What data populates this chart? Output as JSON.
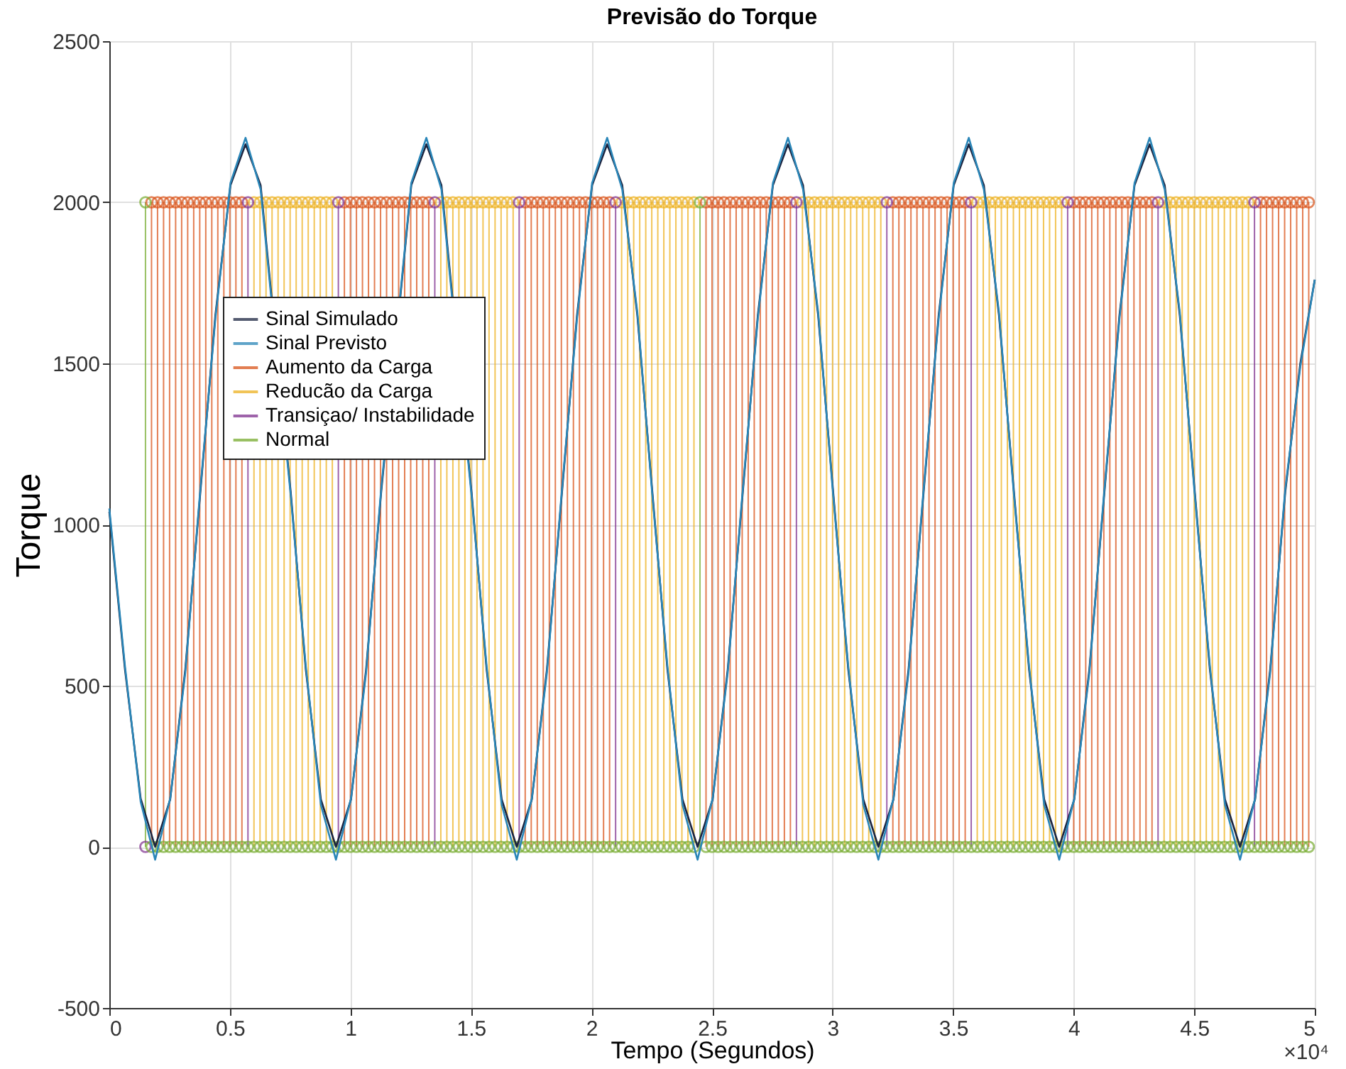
{
  "chart_data": {
    "type": "line",
    "title": "Previsão do Torque",
    "xlabel": "Tempo (Segundos)",
    "ylabel": "Torque",
    "xlim": [
      0,
      5
    ],
    "xticks": [
      0,
      0.5,
      1,
      1.5,
      2,
      2.5,
      3,
      3.5,
      4,
      4.5,
      5
    ],
    "ylim": [
      -500,
      2500
    ],
    "yticks": [
      -500,
      0,
      500,
      1000,
      1500,
      2000,
      2500
    ],
    "grid": true,
    "legend": "left",
    "annotations": [
      "×10⁴"
    ],
    "series": [
      {
        "name": "Sinal Simulado",
        "color": "#1c2541",
        "x": [
          0,
          0.065,
          0.13,
          0.19,
          0.2525,
          0.315,
          0.3775,
          0.44,
          0.5025,
          0.565,
          0.6275,
          0.69,
          0.7525,
          0.815,
          0.8775,
          0.94,
          1.0025,
          1.065,
          1.1275,
          1.19,
          1.2525,
          1.315,
          1.3775,
          1.44,
          1.5025,
          1.565,
          1.6275,
          1.69,
          1.7525,
          1.815,
          1.8775,
          1.94,
          2.0025,
          2.065,
          2.1275,
          2.19,
          2.2525,
          2.315,
          2.3775,
          2.44,
          2.5025,
          2.565,
          2.6275,
          2.69,
          2.7525,
          2.815,
          2.8775,
          2.94,
          3.0025,
          3.065,
          3.1275,
          3.19,
          3.2525,
          3.315,
          3.3775,
          3.44,
          3.5025,
          3.565,
          3.6275,
          3.69,
          3.7525,
          3.815,
          3.8775,
          3.94,
          4.0025,
          4.065,
          4.1275,
          4.19,
          4.2525,
          4.315,
          4.3775,
          4.44,
          4.5025,
          4.565,
          4.6275,
          4.69,
          4.7525,
          4.815,
          4.8775,
          4.94,
          5
        ],
        "values": [
          1040,
          550,
          150,
          0,
          147,
          550,
          1100,
          1650,
          2053,
          2180,
          2053,
          null,
          1100,
          550,
          147,
          0,
          147,
          550,
          1100,
          null,
          2053,
          2180,
          2053,
          null,
          1100,
          550,
          147,
          0,
          147,
          550,
          1100,
          1650,
          2053,
          2180,
          2053,
          1650,
          1100,
          550,
          147,
          0,
          147,
          550,
          1100,
          1650,
          2053,
          2180,
          2053,
          1650,
          1100,
          550,
          147,
          0,
          147,
          550,
          1100,
          1650,
          2053,
          2180,
          2053,
          1650,
          1100,
          550,
          147,
          0,
          147,
          550,
          1100,
          1650,
          2053,
          2180,
          2053,
          1650,
          1100,
          550,
          147,
          0,
          147,
          550,
          1100,
          1500,
          1760
        ]
      },
      {
        "name": "Sinal Previsto",
        "color": "#2a86b8",
        "x": [
          0,
          0.065,
          0.13,
          0.19,
          0.2525,
          0.315,
          0.3775,
          0.44,
          0.5025,
          0.565,
          0.6275,
          0.69,
          0.7525,
          0.815,
          0.8775,
          0.94,
          1.0025,
          1.065,
          1.1275,
          1.19,
          1.2525,
          1.315,
          1.3775,
          1.44,
          1.5025,
          1.565,
          1.6275,
          1.69,
          1.7525,
          1.815,
          1.8775,
          1.94,
          2.0025,
          2.065,
          2.1275,
          2.19,
          2.2525,
          2.315,
          2.3775,
          2.44,
          2.5025,
          2.565,
          2.6275,
          2.69,
          2.7525,
          2.815,
          2.8775,
          2.94,
          3.0025,
          3.065,
          3.1275,
          3.19,
          3.2525,
          3.315,
          3.3775,
          3.44,
          3.5025,
          3.565,
          3.6275,
          3.69,
          3.7525,
          3.815,
          3.8775,
          3.94,
          4.0025,
          4.065,
          4.1275,
          4.19,
          4.2525,
          4.315,
          4.3775,
          4.44,
          4.5025,
          4.565,
          4.6275,
          4.69,
          4.7525,
          4.815,
          4.8775,
          4.94,
          5
        ],
        "values": [
          1050,
          560,
          140,
          -40,
          150,
          540,
          1110,
          1640,
          2060,
          2200,
          2040,
          null,
          1090,
          560,
          130,
          -40,
          150,
          540,
          1110,
          null,
          2060,
          2200,
          2040,
          null,
          1090,
          560,
          130,
          -40,
          150,
          540,
          1110,
          1640,
          2060,
          2200,
          2040,
          1660,
          1090,
          560,
          130,
          -40,
          150,
          540,
          1110,
          1640,
          2060,
          2200,
          2040,
          1660,
          1090,
          560,
          130,
          -40,
          150,
          540,
          1110,
          1640,
          2060,
          2200,
          2040,
          1660,
          1090,
          560,
          130,
          -40,
          150,
          540,
          1110,
          1640,
          2060,
          2200,
          2040,
          1660,
          1090,
          560,
          130,
          -40,
          150,
          540,
          1110,
          1490,
          1760
        ]
      },
      {
        "name": "Aumento da Carga",
        "color": "#d95319",
        "type": "lollipop",
        "marker": "circle",
        "x": [
          0.175,
          0.2,
          0.225,
          0.25,
          0.275,
          0.3,
          0.325,
          0.35,
          0.375,
          0.4,
          0.425,
          0.45,
          0.475,
          0.5,
          0.525,
          0.55,
          0.975,
          1,
          1.025,
          1.05,
          1.075,
          1.1,
          1.125,
          1.15,
          1.175,
          1.2,
          1.225,
          1.25,
          1.275,
          1.3,
          1.325,
          1.725,
          1.75,
          1.775,
          1.8,
          1.825,
          1.85,
          1.875,
          1.9,
          1.925,
          1.95,
          1.975,
          2,
          2.025,
          2.05,
          2.075,
          2.475,
          2.5,
          2.525,
          2.55,
          2.575,
          2.6,
          2.625,
          2.65,
          2.675,
          2.7,
          2.725,
          2.75,
          2.775,
          2.8,
          2.825,
          3.25,
          3.275,
          3.3,
          3.325,
          3.35,
          3.375,
          3.4,
          3.425,
          3.45,
          3.475,
          3.5,
          3.525,
          3.55,
          4,
          4.025,
          4.05,
          4.075,
          4.1,
          4.125,
          4.15,
          4.175,
          4.2,
          4.225,
          4.25,
          4.275,
          4.3,
          4.325,
          4.775,
          4.8,
          4.825,
          4.85,
          4.875,
          4.9,
          4.925,
          4.95,
          4.975
        ],
        "values": [
          2000,
          2000,
          2000,
          2000,
          2000,
          2000,
          2000,
          2000,
          2000,
          2000,
          2000,
          2000,
          2000,
          2000,
          2000,
          2000,
          2000,
          2000,
          2000,
          2000,
          2000,
          2000,
          2000,
          2000,
          2000,
          2000,
          2000,
          2000,
          2000,
          2000,
          2000,
          2000,
          2000,
          2000,
          2000,
          2000,
          2000,
          2000,
          2000,
          2000,
          2000,
          2000,
          2000,
          2000,
          2000,
          2000,
          2000,
          2000,
          2000,
          2000,
          2000,
          2000,
          2000,
          2000,
          2000,
          2000,
          2000,
          2000,
          2000,
          2000,
          2000,
          2000,
          2000,
          2000,
          2000,
          2000,
          2000,
          2000,
          2000,
          2000,
          2000,
          2000,
          2000,
          2000,
          2000,
          2000,
          2000,
          2000,
          2000,
          2000,
          2000,
          2000,
          2000,
          2000,
          2000,
          2000,
          2000,
          2000,
          2000,
          2000,
          2000,
          2000,
          2000,
          2000,
          2000,
          2000,
          2000
        ]
      },
      {
        "name": "Reducão da Carga",
        "color": "#edb120",
        "type": "lollipop",
        "marker": "circle",
        "x": [
          0.6,
          0.625,
          0.65,
          0.675,
          0.7,
          0.725,
          0.75,
          0.775,
          0.8,
          0.825,
          0.85,
          0.875,
          0.9,
          0.925,
          1.375,
          1.4,
          1.425,
          1.45,
          1.475,
          1.5,
          1.525,
          1.55,
          1.575,
          1.6,
          1.625,
          1.65,
          1.675,
          2.125,
          2.15,
          2.175,
          2.2,
          2.225,
          2.25,
          2.275,
          2.3,
          2.325,
          2.35,
          2.375,
          2.4,
          2.425,
          2.875,
          2.9,
          2.925,
          2.95,
          2.975,
          3,
          3.025,
          3.05,
          3.075,
          3.1,
          3.125,
          3.15,
          3.175,
          3.2,
          3.6,
          3.625,
          3.65,
          3.675,
          3.7,
          3.725,
          3.75,
          3.775,
          3.8,
          3.825,
          3.85,
          3.875,
          3.9,
          3.925,
          3.95,
          4.375,
          4.4,
          4.425,
          4.45,
          4.475,
          4.5,
          4.525,
          4.55,
          4.575,
          4.6,
          4.625,
          4.65,
          4.675,
          4.7,
          4.725
        ],
        "values": [
          2000,
          2000,
          2000,
          2000,
          2000,
          2000,
          2000,
          2000,
          2000,
          2000,
          2000,
          2000,
          2000,
          2000,
          2000,
          2000,
          2000,
          2000,
          2000,
          2000,
          2000,
          2000,
          2000,
          2000,
          2000,
          2000,
          2000,
          2000,
          2000,
          2000,
          2000,
          2000,
          2000,
          2000,
          2000,
          2000,
          2000,
          2000,
          2000,
          2000,
          2000,
          2000,
          2000,
          2000,
          2000,
          2000,
          2000,
          2000,
          2000,
          2000,
          2000,
          2000,
          2000,
          2000,
          2000,
          2000,
          2000,
          2000,
          2000,
          2000,
          2000,
          2000,
          2000,
          2000,
          2000,
          2000,
          2000,
          2000,
          2000,
          2000,
          2000,
          2000,
          2000,
          2000,
          2000,
          2000,
          2000,
          2000,
          2000,
          2000,
          2000,
          2000,
          2000,
          2000
        ]
      },
      {
        "name": "Transiçao/ Instabilidade",
        "color": "#7e2f8e",
        "type": "lollipop",
        "marker": "circle",
        "x": [
          0.15,
          0.575,
          0.95,
          1.35,
          1.7,
          2.1,
          2.85,
          3.225,
          3.575,
          3.975,
          4.35,
          4.75
        ],
        "values": [
          0,
          2000,
          2000,
          2000,
          2000,
          2000,
          2000,
          2000,
          2000,
          2000,
          2000,
          2000
        ]
      },
      {
        "name": "Normal",
        "color": "#77ac30",
        "type": "lollipop",
        "marker": "circle",
        "x": [
          0.15,
          0.175,
          0.2,
          0.225,
          0.25,
          0.275,
          0.3,
          0.325,
          0.35,
          0.375,
          0.4,
          0.425,
          0.45,
          0.475,
          0.5,
          0.525,
          0.55,
          0.575,
          0.6,
          0.625,
          0.65,
          0.675,
          0.7,
          0.725,
          0.75,
          0.775,
          0.8,
          0.825,
          0.85,
          0.875,
          0.9,
          0.925,
          0.95,
          0.975,
          1,
          1.025,
          1.05,
          1.075,
          1.1,
          1.125,
          1.15,
          1.175,
          1.2,
          1.225,
          1.25,
          1.275,
          1.3,
          1.325,
          1.35,
          1.375,
          1.4,
          1.425,
          1.45,
          1.475,
          1.5,
          1.525,
          1.55,
          1.575,
          1.6,
          1.625,
          1.65,
          1.675,
          1.7,
          1.725,
          1.75,
          1.775,
          1.8,
          1.825,
          1.85,
          1.875,
          1.9,
          1.925,
          1.95,
          1.975,
          2,
          2.025,
          2.05,
          2.075,
          2.1,
          2.125,
          2.15,
          2.175,
          2.2,
          2.225,
          2.25,
          2.275,
          2.3,
          2.325,
          2.35,
          2.375,
          2.4,
          2.425,
          2.45,
          2.475,
          2.5,
          2.525,
          2.55,
          2.575,
          2.6,
          2.625,
          2.65,
          2.675,
          2.7,
          2.725,
          2.75,
          2.775,
          2.8,
          2.825,
          2.85,
          2.875,
          2.9,
          2.925,
          2.95,
          2.975,
          3,
          3.025,
          3.05,
          3.075,
          3.1,
          3.125,
          3.15,
          3.175,
          3.2,
          3.225,
          3.25,
          3.275,
          3.3,
          3.325,
          3.35,
          3.375,
          3.4,
          3.425,
          3.45,
          3.475,
          3.5,
          3.525,
          3.55,
          3.575,
          3.6,
          3.625,
          3.65,
          3.675,
          3.7,
          3.725,
          3.75,
          3.775,
          3.8,
          3.825,
          3.85,
          3.875,
          3.9,
          3.925,
          3.95,
          3.975,
          4,
          4.025,
          4.05,
          4.075,
          4.1,
          4.125,
          4.15,
          4.175,
          4.2,
          4.225,
          4.25,
          4.275,
          4.3,
          4.325,
          4.35,
          4.375,
          4.4,
          4.425,
          4.45,
          4.475,
          4.5,
          4.525,
          4.55,
          4.575,
          4.6,
          4.625,
          4.65,
          4.675,
          4.7,
          4.725,
          4.75,
          4.775,
          4.8,
          4.825,
          4.85,
          4.875,
          4.9,
          4.925,
          4.95,
          4.975
        ],
        "values": [
          2000,
          0,
          0,
          0,
          0,
          0,
          0,
          0,
          0,
          0,
          0,
          0,
          0,
          0,
          0,
          0,
          0,
          0,
          0,
          0,
          0,
          0,
          0,
          0,
          0,
          0,
          0,
          0,
          0,
          0,
          0,
          0,
          0,
          0,
          0,
          0,
          0,
          0,
          0,
          0,
          0,
          0,
          0,
          0,
          0,
          0,
          0,
          0,
          0,
          0,
          0,
          0,
          0,
          0,
          0,
          0,
          0,
          0,
          0,
          0,
          0,
          0,
          0,
          0,
          0,
          0,
          0,
          0,
          0,
          0,
          0,
          0,
          0,
          0,
          0,
          0,
          0,
          0,
          0,
          0,
          0,
          0,
          0,
          0,
          0,
          0,
          0,
          0,
          0,
          0,
          0,
          0,
          2000,
          0,
          0,
          0,
          0,
          0,
          0,
          0,
          0,
          0,
          0,
          0,
          0,
          0,
          0,
          0,
          0,
          0,
          0,
          0,
          0,
          0,
          0,
          0,
          0,
          0,
          0,
          0,
          0,
          0,
          0,
          0,
          0,
          0,
          0,
          0,
          0,
          0,
          0,
          0,
          0,
          0,
          0,
          0,
          0,
          0,
          0,
          0,
          0,
          0,
          0,
          0,
          0,
          0,
          0,
          0,
          0,
          0,
          0,
          0,
          0,
          0,
          0,
          0,
          0,
          0,
          0,
          0,
          0,
          0,
          0,
          0,
          0,
          0,
          0,
          0,
          0,
          0,
          0,
          0,
          0,
          0,
          0,
          0,
          0,
          0,
          0,
          0,
          0,
          0,
          0,
          0,
          0,
          0,
          0,
          0,
          0,
          0,
          0,
          0,
          0,
          0
        ]
      }
    ]
  }
}
